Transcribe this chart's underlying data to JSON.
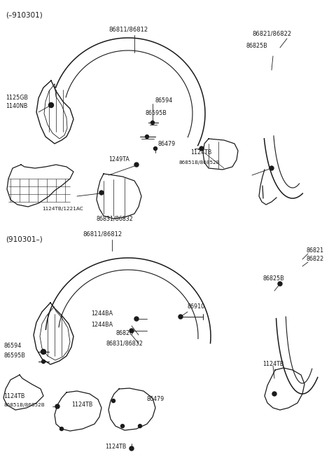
{
  "bg_color": "#ffffff",
  "line_color": "#1a1a1a",
  "text_color": "#1a1a1a",
  "section1_label": "(–910301)",
  "section2_label": "(910301–)",
  "figsize": [
    4.8,
    6.55
  ],
  "dpi": 100,
  "xlim": [
    0,
    480
  ],
  "ylim": [
    0,
    655
  ]
}
